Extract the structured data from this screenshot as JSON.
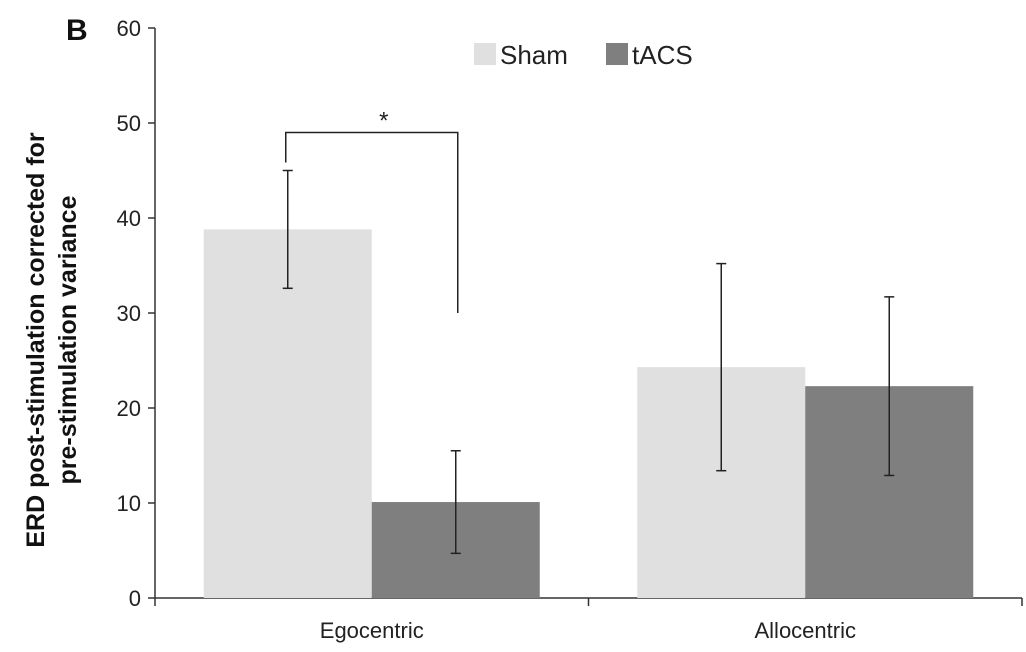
{
  "panel_label": "B",
  "chart_data": {
    "type": "bar",
    "title": "",
    "xlabel": "",
    "ylabel": [
      "ERD post-stimulation corrected for",
      "pre-stimulation variance"
    ],
    "categories": [
      "Egocentric",
      "Allocentric"
    ],
    "ylim": [
      0,
      60
    ],
    "yticks": [
      0,
      10,
      20,
      30,
      40,
      50,
      60
    ],
    "grid": false,
    "legend_position": "top-center",
    "series": [
      {
        "name": "Sham",
        "color": "#e0e0e0",
        "values": [
          38.8,
          24.3
        ],
        "error": [
          6.2,
          10.9
        ]
      },
      {
        "name": "tACS",
        "color": "#7f7f7f",
        "values": [
          10.1,
          22.3
        ],
        "error": [
          5.4,
          9.4
        ]
      }
    ],
    "annotations": [
      {
        "text": "*",
        "category": "Egocentric",
        "type": "significance-bracket",
        "between": [
          "Sham",
          "tACS"
        ],
        "level": 49
      }
    ]
  }
}
